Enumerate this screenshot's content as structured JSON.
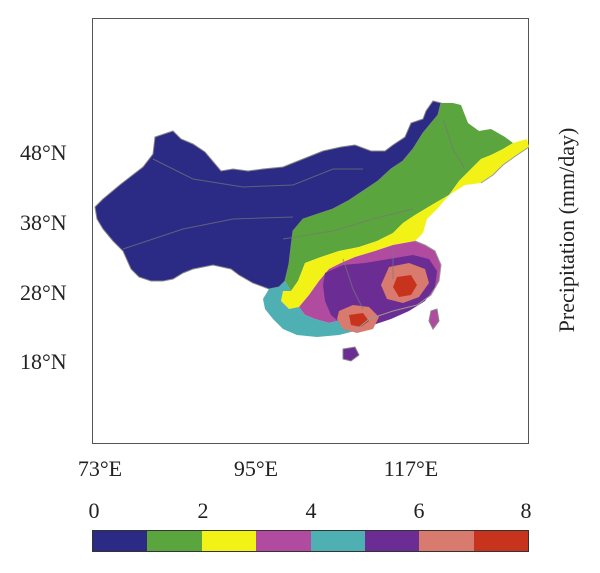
{
  "map": {
    "y_axis_labels": [
      "48°N",
      "38°N",
      "28°N",
      "18°N"
    ],
    "x_axis_labels": [
      "73°E",
      "95°E",
      "117°E"
    ],
    "axis_title": "Precipitation (mm/day)"
  },
  "colorbar": {
    "tick_labels": [
      "0",
      "2",
      "4",
      "6",
      "8"
    ],
    "colors": [
      "#2b2a85",
      "#5aa53d",
      "#f2f217",
      "#b04ba0",
      "#4eb0b2",
      "#6b2d93",
      "#d97a6e",
      "#c8331e"
    ]
  }
}
